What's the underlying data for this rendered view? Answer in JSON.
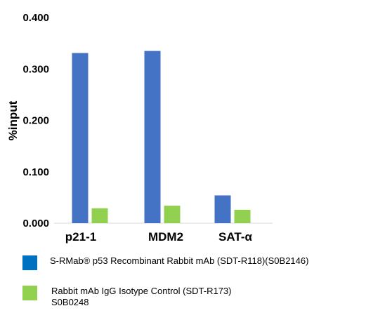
{
  "chart_data": {
    "type": "bar",
    "ylabel": "%input",
    "xlabel": "",
    "ylim": [
      0,
      0.4
    ],
    "yticks": [
      "0.000",
      "0.100",
      "0.200",
      "0.300",
      "0.400"
    ],
    "categories": [
      "p21-1",
      "MDM2",
      "SAT-α"
    ],
    "series": [
      {
        "name": "S-RMab® p53 Recombinant Rabbit mAb (SDT-R118)(S0B2146)",
        "color": "#4472c4",
        "values": [
          0.331,
          0.335,
          0.054
        ]
      },
      {
        "name": "Rabbit mAb IgG Isotype Control (SDT-R173) S0B0248",
        "color": "#92d050",
        "values": [
          0.029,
          0.034,
          0.026
        ]
      }
    ],
    "grid": false,
    "legend_position": "bottom"
  },
  "legend": {
    "items": [
      {
        "line1": "S-RMab® p53 Recombinant Rabbit mAb (SDT-R118)(S0B2146)",
        "line2": "",
        "swatch_color": "#0070c0"
      },
      {
        "line1": "Rabbit mAb IgG Isotype Control (SDT-R173)",
        "line2": "S0B0248",
        "swatch_color": "#92d050"
      }
    ]
  }
}
